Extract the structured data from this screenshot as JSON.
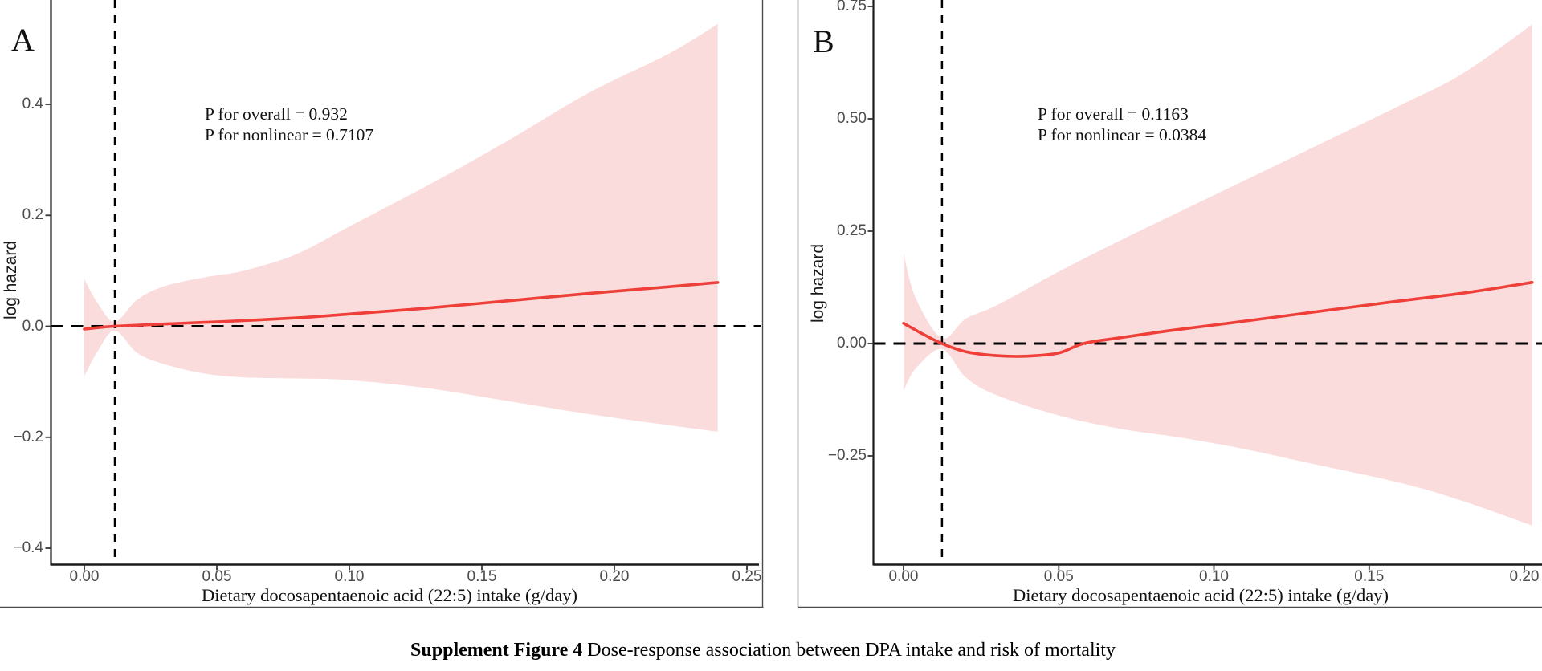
{
  "caption": {
    "bold": "Supplement Figure 4",
    "rest": " Dose-response association between DPA intake and risk of mortality"
  },
  "chart_data": [
    {
      "panel_label": "A",
      "type": "line",
      "xlabel": "Dietary docosapentaenoic acid (22:5) intake (g/day)",
      "ylabel": "log hazard",
      "annotations": [
        "P for overall = 0.932",
        "P for nonlinear = 0.7107"
      ],
      "x_ticks": {
        "labels": [
          "0.00",
          "0.05",
          "0.10",
          "0.15",
          "0.20",
          "0.25"
        ],
        "values": [
          0.0,
          0.05,
          0.1,
          0.15,
          0.2,
          0.25
        ]
      },
      "y_ticks": {
        "labels": [
          "0.4",
          "0.2",
          "0.0",
          "−0.2",
          "−0.4"
        ],
        "values": [
          0.4,
          0.2,
          0.0,
          -0.2,
          -0.4
        ]
      },
      "xlim": [
        -0.013,
        0.256
      ],
      "ylim": [
        -0.43,
        0.59
      ],
      "grid": "off",
      "reference_lines": {
        "horizontal_y": 0.0,
        "vertical_x": 0.0115
      },
      "colors": {
        "line": "#ee3f39",
        "band": "#fbdcdc",
        "reference": "#000000"
      },
      "series": [
        {
          "name": "estimate",
          "x": [
            0,
            0.006,
            0.0115,
            0.03,
            0.05,
            0.08,
            0.1,
            0.13,
            0.16,
            0.19,
            0.22,
            0.239
          ],
          "y": [
            -0.005,
            -0.002,
            0,
            0.004,
            0.008,
            0.015,
            0.022,
            0.033,
            0.046,
            0.059,
            0.071,
            0.079
          ]
        },
        {
          "name": "ci_upper",
          "x": [
            0,
            0.005,
            0.0115,
            0.02,
            0.03,
            0.045,
            0.06,
            0.08,
            0.1,
            0.13,
            0.16,
            0.19,
            0.22,
            0.239
          ],
          "y": [
            0.085,
            0.042,
            0.008,
            0.048,
            0.072,
            0.088,
            0.1,
            0.13,
            0.18,
            0.255,
            0.335,
            0.42,
            0.49,
            0.545
          ]
        },
        {
          "name": "ci_lower",
          "x": [
            0,
            0.005,
            0.0115,
            0.02,
            0.03,
            0.045,
            0.06,
            0.08,
            0.1,
            0.13,
            0.16,
            0.19,
            0.22,
            0.239
          ],
          "y": [
            -0.09,
            -0.045,
            -0.008,
            -0.048,
            -0.068,
            -0.085,
            -0.092,
            -0.094,
            -0.097,
            -0.112,
            -0.135,
            -0.158,
            -0.178,
            -0.19
          ]
        }
      ]
    },
    {
      "panel_label": "B",
      "type": "line",
      "xlabel": "Dietary docosapentaenoic acid (22:5) intake (g/day)",
      "ylabel": "log hazard",
      "annotations": [
        "P for overall = 0.1163",
        "P for nonlinear = 0.0384"
      ],
      "x_ticks": {
        "labels": [
          "0.00",
          "0.05",
          "0.10",
          "0.15",
          "0.20"
        ],
        "values": [
          0.0,
          0.05,
          0.1,
          0.15,
          0.2
        ]
      },
      "y_ticks": {
        "labels": [
          "0.75",
          "0.50",
          "0.25",
          "0.00",
          "−0.25"
        ],
        "values": [
          0.75,
          0.5,
          0.25,
          0.0,
          -0.25
        ]
      },
      "xlim": [
        -0.01,
        0.206
      ],
      "ylim": [
        -0.49,
        0.76
      ],
      "grid": "off",
      "reference_lines": {
        "horizontal_y": 0.0,
        "vertical_x": 0.0124
      },
      "colors": {
        "line": "#ee3f39",
        "band": "#fbdcdc",
        "reference": "#000000"
      },
      "series": [
        {
          "name": "estimate",
          "x": [
            0,
            0.006,
            0.0124,
            0.02,
            0.03,
            0.04,
            0.05,
            0.058,
            0.07,
            0.085,
            0.1,
            0.13,
            0.16,
            0.18,
            0.2025
          ],
          "y": [
            0.045,
            0.022,
            0,
            -0.018,
            -0.027,
            -0.028,
            -0.021,
            0,
            0.013,
            0.028,
            0.041,
            0.068,
            0.095,
            0.112,
            0.136
          ]
        },
        {
          "name": "ci_upper",
          "x": [
            0,
            0.004,
            0.0124,
            0.02,
            0.03,
            0.05,
            0.07,
            0.1,
            0.13,
            0.16,
            0.18,
            0.2025
          ],
          "y": [
            0.2,
            0.1,
            0.012,
            0.055,
            0.085,
            0.16,
            0.23,
            0.33,
            0.43,
            0.53,
            0.6,
            0.71
          ]
        },
        {
          "name": "ci_lower",
          "x": [
            0,
            0.004,
            0.0124,
            0.02,
            0.03,
            0.05,
            0.07,
            0.09,
            0.11,
            0.13,
            0.16,
            0.18,
            0.2025
          ],
          "y": [
            -0.105,
            -0.055,
            -0.012,
            -0.075,
            -0.115,
            -0.16,
            -0.19,
            -0.21,
            -0.235,
            -0.265,
            -0.31,
            -0.35,
            -0.405
          ]
        }
      ]
    }
  ]
}
